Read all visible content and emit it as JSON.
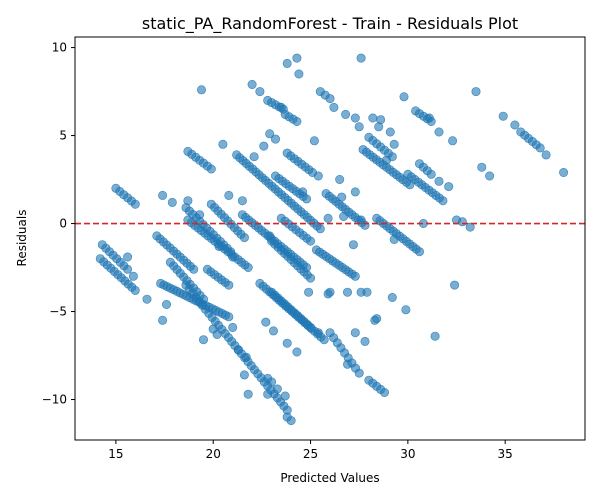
{
  "chart_data": {
    "type": "scatter",
    "title": "static_PA_RandomForest - Train - Residuals Plot",
    "xlabel": "Predicted Values",
    "ylabel": "Residuals",
    "xlim": [
      12.9,
      39.1
    ],
    "ylim": [
      -12.3,
      10.6
    ],
    "xticks": [
      15,
      20,
      25,
      30,
      35
    ],
    "yticks": [
      -10,
      -5,
      0,
      5,
      10
    ],
    "grid": false,
    "reference_line": {
      "y": 0,
      "color": "#d62728",
      "style": "dashed"
    },
    "point_color": "#1f77b4",
    "point_alpha": 0.6,
    "bands": [
      {
        "x": [
          14.2,
          16.0
        ],
        "y": [
          -2.0,
          -3.8
        ]
      },
      {
        "x": [
          14.3,
          15.6
        ],
        "y": [
          -1.2,
          -2.6
        ]
      },
      {
        "x": [
          15.0,
          16.0
        ],
        "y": [
          2.0,
          1.1
        ]
      },
      {
        "x": [
          17.1,
          19.0
        ],
        "y": [
          -0.7,
          -2.6
        ]
      },
      {
        "x": [
          17.8,
          19.5
        ],
        "y": [
          -2.2,
          -4.3
        ]
      },
      {
        "x": [
          17.3,
          20.8
        ],
        "y": [
          -3.4,
          -5.3
        ]
      },
      {
        "x": [
          18.6,
          23.8
        ],
        "y": [
          -3.5,
          -10.6
        ]
      },
      {
        "x": [
          18.7,
          19.9
        ],
        "y": [
          4.1,
          3.1
        ]
      },
      {
        "x": [
          18.7,
          21.8
        ],
        "y": [
          0.2,
          -2.5
        ]
      },
      {
        "x": [
          18.6,
          20.9
        ],
        "y": [
          0.9,
          -1.6
        ]
      },
      {
        "x": [
          19.7,
          20.8
        ],
        "y": [
          -2.6,
          -3.5
        ]
      },
      {
        "x": [
          19.9,
          21.6
        ],
        "y": [
          1.1,
          -0.8
        ]
      },
      {
        "x": [
          21.2,
          25.5
        ],
        "y": [
          3.9,
          -0.3
        ]
      },
      {
        "x": [
          21.5,
          24.8
        ],
        "y": [
          0.5,
          -2.5
        ]
      },
      {
        "x": [
          22.4,
          25.7
        ],
        "y": [
          -3.4,
          -6.6
        ]
      },
      {
        "x": [
          23.0,
          25.0
        ],
        "y": [
          -1.0,
          -3.1
        ]
      },
      {
        "x": [
          22.8,
          23.6
        ],
        "y": [
          7.0,
          6.5
        ]
      },
      {
        "x": [
          23.7,
          24.3
        ],
        "y": [
          6.2,
          5.8
        ]
      },
      {
        "x": [
          23.2,
          24.8
        ],
        "y": [
          2.7,
          1.4
        ]
      },
      {
        "x": [
          23.5,
          25.0
        ],
        "y": [
          0.3,
          -1.0
        ]
      },
      {
        "x": [
          23.8,
          25.1
        ],
        "y": [
          4.0,
          2.9
        ]
      },
      {
        "x": [
          23.0,
          25.0
        ],
        "y": [
          -3.9,
          -5.9
        ]
      },
      {
        "x": [
          25.5,
          26.0
        ],
        "y": [
          7.5,
          7.1
        ]
      },
      {
        "x": [
          25.8,
          27.8
        ],
        "y": [
          1.7,
          -0.1
        ]
      },
      {
        "x": [
          25.3,
          27.3
        ],
        "y": [
          -1.5,
          -3.0
        ]
      },
      {
        "x": [
          26.0,
          27.5
        ],
        "y": [
          -6.2,
          -8.5
        ]
      },
      {
        "x": [
          27.7,
          30.1
        ],
        "y": [
          4.2,
          2.2
        ]
      },
      {
        "x": [
          28.0,
          29.2
        ],
        "y": [
          4.9,
          3.8
        ]
      },
      {
        "x": [
          28.4,
          30.6
        ],
        "y": [
          0.3,
          -1.6
        ]
      },
      {
        "x": [
          28.0,
          28.8
        ],
        "y": [
          -8.9,
          -9.6
        ]
      },
      {
        "x": [
          30.0,
          31.8
        ],
        "y": [
          2.8,
          1.3
        ]
      },
      {
        "x": [
          30.4,
          31.2
        ],
        "y": [
          6.4,
          5.8
        ]
      },
      {
        "x": [
          30.6,
          31.2
        ],
        "y": [
          3.4,
          2.8
        ]
      },
      {
        "x": [
          35.8,
          36.8
        ],
        "y": [
          5.2,
          4.3
        ]
      }
    ],
    "scattered_points": [
      [
        19.4,
        7.6
      ],
      [
        22.0,
        7.9
      ],
      [
        22.4,
        7.5
      ],
      [
        23.8,
        9.1
      ],
      [
        24.3,
        9.4
      ],
      [
        24.4,
        8.5
      ],
      [
        27.6,
        9.4
      ],
      [
        27.3,
        6.0
      ],
      [
        28.5,
        5.5
      ],
      [
        29.3,
        4.5
      ],
      [
        29.8,
        7.2
      ],
      [
        31.1,
        6.0
      ],
      [
        31.6,
        5.2
      ],
      [
        32.3,
        4.7
      ],
      [
        33.5,
        7.5
      ],
      [
        34.2,
        2.7
      ],
      [
        33.8,
        3.2
      ],
      [
        34.9,
        6.1
      ],
      [
        35.5,
        5.6
      ],
      [
        37.1,
        3.9
      ],
      [
        38.0,
        2.9
      ],
      [
        31.6,
        2.4
      ],
      [
        32.1,
        2.1
      ],
      [
        32.5,
        0.2
      ],
      [
        33.2,
        -0.2
      ],
      [
        31.4,
        -6.4
      ],
      [
        32.4,
        -3.5
      ],
      [
        29.2,
        -4.2
      ],
      [
        29.9,
        -4.9
      ],
      [
        28.3,
        -5.5
      ],
      [
        27.3,
        -6.2
      ],
      [
        26.0,
        -3.9
      ],
      [
        26.9,
        -3.9
      ],
      [
        27.6,
        -3.9
      ],
      [
        27.2,
        -1.2
      ],
      [
        23.5,
        6.6
      ],
      [
        20.5,
        4.5
      ],
      [
        22.1,
        3.8
      ],
      [
        22.6,
        4.4
      ],
      [
        22.9,
        5.1
      ],
      [
        23.2,
        4.8
      ],
      [
        25.2,
        4.7
      ],
      [
        17.4,
        1.6
      ],
      [
        17.9,
        1.2
      ],
      [
        18.7,
        1.3
      ],
      [
        19.3,
        0.5
      ],
      [
        16.6,
        -4.3
      ],
      [
        17.4,
        -5.5
      ],
      [
        17.6,
        -4.6
      ],
      [
        19.5,
        -6.6
      ],
      [
        20.0,
        -6.0
      ],
      [
        20.2,
        -6.3
      ],
      [
        21.0,
        -5.9
      ],
      [
        21.3,
        -7.2
      ],
      [
        21.7,
        -7.6
      ],
      [
        21.6,
        -8.6
      ],
      [
        21.8,
        -9.7
      ],
      [
        22.8,
        -8.8
      ],
      [
        23.0,
        -9.0
      ],
      [
        23.3,
        -9.4
      ],
      [
        22.8,
        -9.7
      ],
      [
        23.7,
        -9.8
      ],
      [
        23.8,
        -11.0
      ],
      [
        24.0,
        -11.2
      ],
      [
        22.7,
        -5.6
      ],
      [
        23.1,
        -6.1
      ],
      [
        23.8,
        -6.8
      ],
      [
        24.3,
        -7.3
      ],
      [
        24.9,
        -3.9
      ],
      [
        25.4,
        -6.2
      ],
      [
        25.9,
        -4.0
      ],
      [
        26.9,
        -8.0
      ],
      [
        27.9,
        -3.9
      ],
      [
        27.8,
        -6.7
      ],
      [
        28.4,
        -5.4
      ],
      [
        29.3,
        -0.9
      ],
      [
        20.8,
        1.6
      ],
      [
        21.5,
        1.3
      ],
      [
        22.9,
        -0.7
      ],
      [
        21.0,
        -1.9
      ],
      [
        20.3,
        -1.3
      ],
      [
        30.8,
        0.0
      ],
      [
        32.8,
        0.1
      ],
      [
        27.5,
        5.5
      ],
      [
        26.2,
        6.6
      ],
      [
        26.8,
        6.2
      ],
      [
        28.2,
        6.0
      ],
      [
        28.6,
        5.9
      ],
      [
        29.1,
        5.2
      ],
      [
        28.9,
        3.6
      ],
      [
        27.6,
        0.2
      ],
      [
        26.5,
        2.5
      ],
      [
        26.6,
        1.5
      ],
      [
        25.9,
        0.3
      ],
      [
        26.7,
        0.4
      ],
      [
        27.3,
        1.8
      ],
      [
        24.6,
        1.8
      ],
      [
        25.4,
        2.7
      ],
      [
        15.6,
        -1.9
      ],
      [
        15.9,
        -3.0
      ]
    ]
  }
}
